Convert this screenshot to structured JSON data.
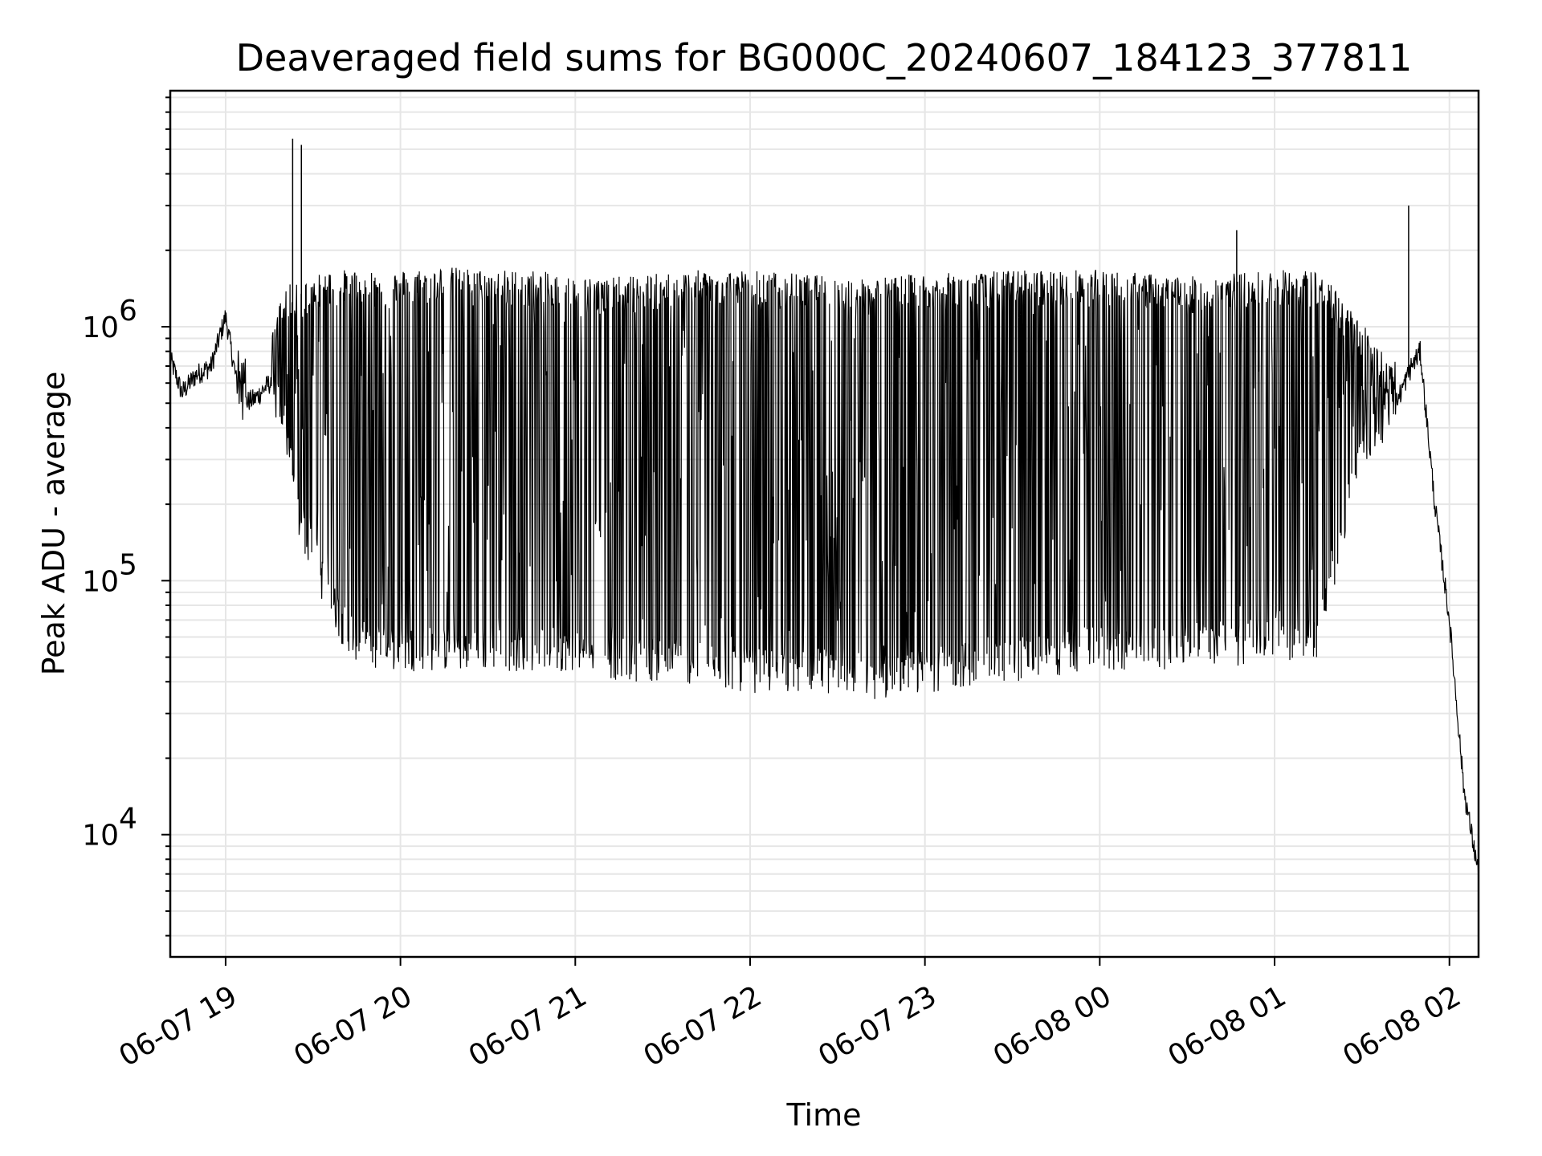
{
  "chart_data": {
    "type": "line",
    "title": "Deaveraged field sums for BG000C_20240607_184123_377811",
    "xlabel": "Time",
    "ylabel": "Peak ADU - average",
    "x_axis": "datetime",
    "xlim": [
      "2024-06-07 18:41",
      "2024-06-08 02:10"
    ],
    "x_tick_labels": [
      "06-07 19",
      "06-07 20",
      "06-07 21",
      "06-07 22",
      "06-07 23",
      "06-08 00",
      "06-08 01",
      "06-08 02"
    ],
    "x_tick_values": [
      "2024-06-07 19:00",
      "2024-06-07 20:00",
      "2024-06-07 21:00",
      "2024-06-07 22:00",
      "2024-06-07 23:00",
      "2024-06-08 00:00",
      "2024-06-08 01:00",
      "2024-06-08 02:00"
    ],
    "y_scale": "log",
    "ylim": [
      3300,
      8500000
    ],
    "y_tick_labels": [
      "10",
      "10",
      "10"
    ],
    "y_tick_exponents": [
      "4",
      "5",
      "6"
    ],
    "y_tick_values": [
      10000,
      100000,
      1000000
    ],
    "grid": true,
    "line_color": "#000000",
    "series": [
      {
        "x": [
          "2024-06-07 18:41",
          "2024-06-07 18:45",
          "2024-06-07 18:50",
          "2024-06-07 18:55",
          "2024-06-07 19:00",
          "2024-06-07 19:05",
          "2024-06-07 19:10",
          "2024-06-07 19:15",
          "2024-06-07 19:20",
          "2024-06-07 19:25",
          "2024-06-07 19:30",
          "2024-06-07 19:35",
          "2024-06-07 19:40",
          "2024-06-07 19:45",
          "2024-06-07 19:50",
          "2024-06-07 19:55",
          "2024-06-07 20:00",
          "2024-06-07 20:15",
          "2024-06-07 20:30",
          "2024-06-07 20:45",
          "2024-06-07 21:00",
          "2024-06-07 21:05",
          "2024-06-07 21:15",
          "2024-06-07 21:30",
          "2024-06-07 21:45",
          "2024-06-07 22:00",
          "2024-06-07 22:15",
          "2024-06-07 22:30",
          "2024-06-07 22:45",
          "2024-06-07 23:00",
          "2024-06-07 23:15",
          "2024-06-07 23:30",
          "2024-06-07 23:45",
          "2024-06-08 00:00",
          "2024-06-08 00:15",
          "2024-06-08 00:30",
          "2024-06-08 00:45",
          "2024-06-08 01:00",
          "2024-06-08 01:15",
          "2024-06-08 01:30",
          "2024-06-08 01:40",
          "2024-06-08 01:47",
          "2024-06-08 01:50",
          "2024-06-08 01:55",
          "2024-06-08 02:00",
          "2024-06-08 02:05",
          "2024-06-08 02:10"
        ],
        "y": [
          750000,
          550000,
          650000,
          700000,
          1100000,
          500000,
          520000,
          600000,
          450000,
          180000,
          130000,
          90000,
          70000,
          60000,
          55000,
          55000,
          55000,
          55000,
          55000,
          55000,
          55000,
          55000,
          50000,
          50000,
          48000,
          45000,
          45000,
          45000,
          42000,
          45000,
          48000,
          50000,
          52000,
          55000,
          55000,
          57000,
          57000,
          60000,
          62000,
          350000,
          450000,
          700000,
          800000,
          200000,
          70000,
          15000,
          7000
        ],
        "upper_envelope": [
          750000,
          600000,
          700000,
          750000,
          1200000,
          800000,
          700000,
          800000,
          1400000,
          1400000,
          1500000,
          1600000,
          1600000,
          1600000,
          1600000,
          1550000,
          1600000,
          1650000,
          1600000,
          1600000,
          1500000,
          1500000,
          1500000,
          1550000,
          1600000,
          1600000,
          1550000,
          1500000,
          1500000,
          1550000,
          1550000,
          1600000,
          1600000,
          1600000,
          1550000,
          1500000,
          1550000,
          1600000,
          1600000,
          1000000,
          700000,
          900000,
          900000,
          200000,
          70000,
          15000,
          7000
        ]
      }
    ],
    "spikes": [
      {
        "x": "2024-06-07 19:23",
        "y": 5500000
      },
      {
        "x": "2024-06-07 19:26",
        "y": 5200000
      },
      {
        "x": "2024-06-08 00:47",
        "y": 2400000
      },
      {
        "x": "2024-06-08 01:46",
        "y": 3000000
      }
    ]
  }
}
